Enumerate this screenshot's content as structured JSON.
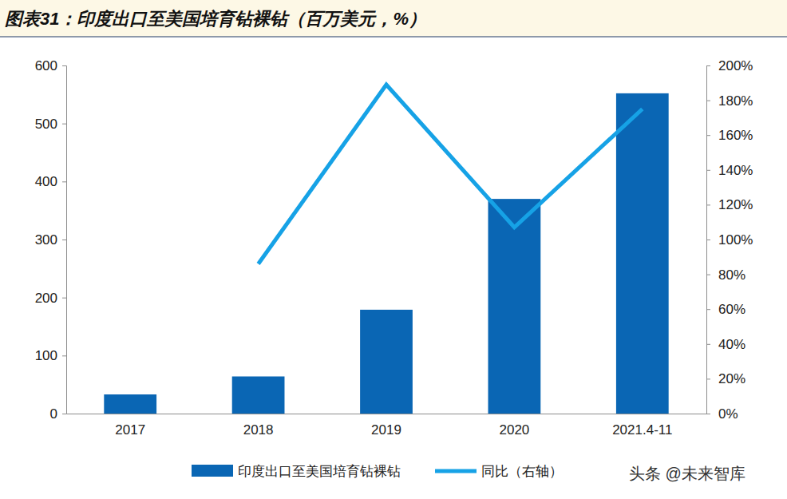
{
  "chart_data": {
    "type": "bar",
    "title": "图表31：印度出口至美国培育钻裸钻（百万美元，%）",
    "categories": [
      "2017",
      "2018",
      "2019",
      "2020",
      "2021.4-11"
    ],
    "series": [
      {
        "name": "印度出口至美国培育钻裸钻",
        "type": "bar",
        "color": "#0a66b4",
        "values": [
          33,
          64,
          179,
          370,
          552
        ]
      },
      {
        "name": "同比（右轴）",
        "type": "line",
        "color": "#16a2e6",
        "axis": "y2",
        "values": [
          null,
          86,
          189,
          107,
          175
        ]
      }
    ],
    "ylim": [
      0,
      600
    ],
    "yticks": [
      0,
      100,
      200,
      300,
      400,
      500,
      600
    ],
    "y2lim": [
      0,
      200
    ],
    "y2ticks": [
      {
        "value": 0,
        "label": "0%"
      },
      {
        "value": 20,
        "label": "20%"
      },
      {
        "value": 40,
        "label": "40%"
      },
      {
        "value": 60,
        "label": "60%"
      },
      {
        "value": 80,
        "label": "80%"
      },
      {
        "value": 100,
        "label": "100%"
      },
      {
        "value": 120,
        "label": "120%"
      },
      {
        "value": 140,
        "label": "140%"
      },
      {
        "value": 160,
        "label": "160%"
      },
      {
        "value": 180,
        "label": "180%"
      },
      {
        "value": 200,
        "label": "200%"
      }
    ],
    "grid": false,
    "legend": "bottom",
    "annotations": [
      {
        "text": "头条 @未来智库"
      }
    ]
  }
}
